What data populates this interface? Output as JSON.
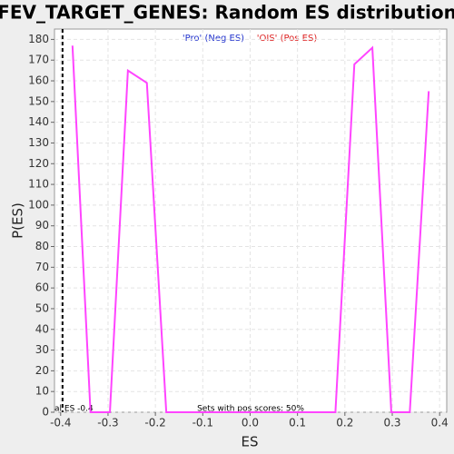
{
  "chart_data": {
    "type": "line",
    "title": "FEV_TARGET_GENES: Random ES distribution",
    "x_label": "ES",
    "y_label": "P(ES)",
    "neg_label": "'Pro' (Neg ES)",
    "pos_label": "'OIS' (Pos ES)",
    "footnote": "Sets with pos scores: 50%",
    "actual_es": {
      "value": -0.396,
      "label": "al ES -0.4"
    },
    "series": [
      {
        "color": "#ff44ff",
        "x": [
          -0.375,
          -0.337,
          -0.296,
          -0.258,
          -0.218,
          -0.177,
          0.18,
          0.22,
          0.258,
          0.298,
          0.337,
          0.377
        ],
        "values": [
          177,
          0,
          0,
          165,
          159,
          0,
          0,
          168,
          176,
          0,
          0,
          155
        ]
      }
    ],
    "xlim": [
      -0.413,
      0.415
    ],
    "ylim": [
      0,
      185
    ],
    "xticks": [
      -0.4,
      -0.3,
      -0.2,
      -0.1,
      {
        "value": 0,
        "label": "0.0"
      },
      0.1,
      0.2,
      0.3,
      0.4
    ],
    "yticks": [
      0,
      10,
      20,
      30,
      40,
      50,
      60,
      70,
      80,
      90,
      100,
      110,
      120,
      130,
      140,
      150,
      160,
      170,
      180
    ],
    "grid": true
  }
}
